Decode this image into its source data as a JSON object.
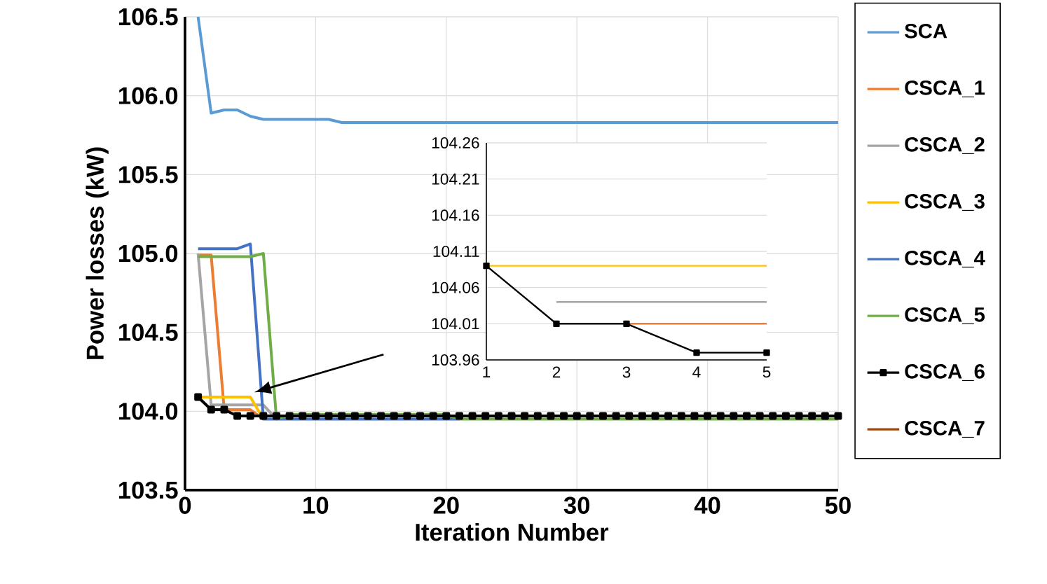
{
  "chart_data": [
    {
      "type": "line",
      "xlabel": "Iteration Number",
      "ylabel": "Power losses (kW)",
      "xlim": [
        0,
        50
      ],
      "ylim": [
        103.5,
        106.5
      ],
      "xticks": [
        0,
        10,
        20,
        30,
        40,
        50
      ],
      "yticks": [
        103.5,
        {
          "value": 104.0,
          "label": "104.0"
        },
        104.5,
        {
          "value": 105.0,
          "label": "105.0"
        },
        105.5,
        {
          "value": 106.0,
          "label": "106.0"
        },
        106.5
      ],
      "grid": true,
      "legend": "right",
      "x": [
        1,
        2,
        3,
        4,
        5,
        6,
        7,
        8,
        9,
        10,
        11,
        12,
        13,
        14,
        15,
        16,
        17,
        18,
        19,
        20,
        21,
        22,
        23,
        24,
        25,
        26,
        27,
        28,
        29,
        30,
        31,
        32,
        33,
        34,
        35,
        36,
        37,
        38,
        39,
        40,
        41,
        42,
        43,
        44,
        45,
        46,
        47,
        48,
        49,
        50
      ],
      "series": [
        {
          "name": "SCA",
          "color": "#5b9bd5",
          "values": [
            106.5,
            105.89,
            105.91,
            105.91,
            105.87,
            105.85,
            105.85,
            105.85,
            105.85,
            105.85,
            105.85,
            105.83,
            105.83,
            105.83,
            105.83,
            105.83,
            105.83,
            105.83,
            105.83,
            105.83,
            105.83,
            105.83,
            105.83,
            105.83,
            105.83,
            105.83,
            105.83,
            105.83,
            105.83,
            105.83,
            105.83,
            105.83,
            105.83,
            105.83,
            105.83,
            105.83,
            105.83,
            105.83,
            105.83,
            105.83,
            105.83,
            105.83,
            105.83,
            105.83,
            105.83,
            105.83,
            105.83,
            105.83,
            105.83,
            105.83
          ]
        },
        {
          "name": "CSCA_1",
          "color": "#ed7d31",
          "values": [
            104.99,
            104.99,
            104.01,
            104.01,
            104.01,
            103.95,
            null,
            null,
            null,
            null,
            null,
            null,
            null,
            null,
            null,
            null,
            null,
            null,
            null,
            null,
            null,
            null,
            null,
            null,
            null,
            null,
            null,
            null,
            null,
            null,
            null,
            null,
            null,
            null,
            null,
            null,
            null,
            null,
            null,
            null,
            null,
            null,
            null,
            null,
            null,
            null,
            null,
            null,
            null,
            null
          ]
        },
        {
          "name": "CSCA_2",
          "color": "#a5a5a5",
          "values": [
            105.0,
            104.04,
            104.04,
            104.04,
            104.04,
            104.04,
            103.95,
            null,
            null,
            null,
            null,
            null,
            null,
            null,
            null,
            null,
            null,
            null,
            null,
            null,
            null,
            null,
            null,
            null,
            null,
            null,
            null,
            null,
            null,
            null,
            null,
            null,
            null,
            null,
            null,
            null,
            null,
            null,
            null,
            null,
            null,
            null,
            null,
            null,
            null,
            null,
            null,
            null,
            null,
            null
          ]
        },
        {
          "name": "CSCA_3",
          "color": "#ffc000",
          "values": [
            104.09,
            104.09,
            104.09,
            104.09,
            104.09,
            103.95,
            null,
            null,
            null,
            null,
            null,
            null,
            null,
            null,
            null,
            null,
            null,
            null,
            null,
            null,
            null,
            null,
            null,
            null,
            null,
            null,
            null,
            null,
            null,
            null,
            null,
            null,
            null,
            null,
            null,
            null,
            null,
            null,
            null,
            null,
            null,
            null,
            null,
            null,
            null,
            null,
            null,
            null,
            null,
            null
          ]
        },
        {
          "name": "CSCA_4",
          "color": "#4472c4",
          "values": [
            105.03,
            105.03,
            105.03,
            105.03,
            105.06,
            103.95,
            103.95,
            103.95,
            103.95,
            103.95,
            103.95,
            103.95,
            103.95,
            103.95,
            103.95,
            103.95,
            103.95,
            103.95,
            103.95,
            103.95,
            103.95,
            null,
            null,
            null,
            null,
            null,
            null,
            null,
            null,
            null,
            null,
            null,
            null,
            null,
            null,
            null,
            null,
            null,
            null,
            null,
            null,
            null,
            null,
            null,
            null,
            null,
            null,
            null,
            null,
            null
          ]
        },
        {
          "name": "CSCA_5",
          "color": "#70ad47",
          "values": [
            104.98,
            104.98,
            104.98,
            104.98,
            104.98,
            105.0,
            103.95,
            103.98,
            103.98,
            103.98,
            103.98,
            103.98,
            103.98,
            103.98,
            103.98,
            103.98,
            103.98,
            103.98,
            103.98,
            103.98,
            103.95,
            103.95,
            103.95,
            103.95,
            103.95,
            103.95,
            103.95,
            103.95,
            103.95,
            103.95,
            103.95,
            103.95,
            103.95,
            103.95,
            103.95,
            103.95,
            103.95,
            103.95,
            103.95,
            103.95,
            103.95,
            103.95,
            103.95,
            103.95,
            103.95,
            103.95,
            103.95,
            103.95,
            103.95,
            103.95
          ]
        },
        {
          "name": "CSCA_6",
          "color": "#000000",
          "marker": "square",
          "values": [
            104.09,
            104.01,
            104.01,
            103.97,
            103.97,
            103.97,
            103.97,
            103.97,
            103.97,
            103.97,
            103.97,
            103.97,
            103.97,
            103.97,
            103.97,
            103.97,
            103.97,
            103.97,
            103.97,
            103.97,
            103.97,
            103.97,
            103.97,
            103.97,
            103.97,
            103.97,
            103.97,
            103.97,
            103.97,
            103.97,
            103.97,
            103.97,
            103.97,
            103.97,
            103.97,
            103.97,
            103.97,
            103.97,
            103.97,
            103.97,
            103.97,
            103.97,
            103.97,
            103.97,
            103.97,
            103.97,
            103.97,
            103.97,
            103.97,
            103.97
          ]
        },
        {
          "name": "CSCA_7",
          "color": "#9e480e",
          "values": [
            null,
            null,
            null,
            null,
            null,
            null,
            null,
            null,
            null,
            null,
            null,
            null,
            null,
            null,
            null,
            null,
            null,
            null,
            null,
            null,
            null,
            null,
            null,
            null,
            null,
            null,
            null,
            null,
            null,
            null,
            null,
            null,
            null,
            null,
            null,
            null,
            null,
            null,
            null,
            null,
            null,
            null,
            null,
            null,
            null,
            null,
            null,
            null,
            null,
            null
          ]
        }
      ]
    },
    {
      "type": "line",
      "xlim": [
        1,
        5
      ],
      "ylim": [
        103.96,
        104.26
      ],
      "xticks": [
        1,
        2,
        3,
        4,
        5
      ],
      "yticks": [
        103.96,
        104.01,
        104.06,
        104.11,
        104.16,
        104.21,
        104.26
      ],
      "grid": "y",
      "x": [
        1,
        2,
        3,
        4,
        5
      ],
      "series": [
        {
          "color": "#a5a5a5",
          "values": [
            null,
            104.04,
            104.04,
            104.04,
            104.04
          ]
        },
        {
          "color": "#ed7d31",
          "values": [
            null,
            null,
            104.01,
            104.01,
            104.01
          ]
        },
        {
          "color": "#ffc000",
          "values": [
            104.09,
            104.09,
            104.09,
            104.09,
            104.09
          ]
        },
        {
          "color": "#000000",
          "marker": "square",
          "values": [
            104.09,
            104.01,
            104.01,
            103.97,
            103.97
          ]
        }
      ]
    }
  ]
}
